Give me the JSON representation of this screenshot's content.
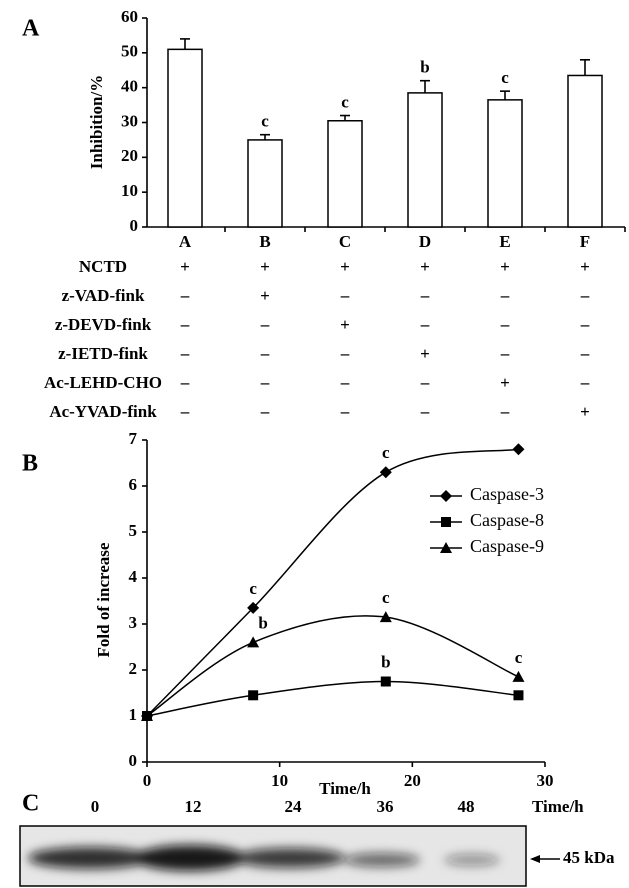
{
  "chart_data": [
    {
      "type": "bar",
      "panel": "A",
      "y_label": "Inhibition/%",
      "categories": [
        "A",
        "B",
        "C",
        "D",
        "E",
        "F"
      ],
      "values": [
        51,
        25,
        30.5,
        38.5,
        36.5,
        43.5
      ],
      "errors": [
        3,
        1.5,
        1.5,
        3.5,
        2.5,
        4.5
      ],
      "annotations": [
        null,
        "c",
        "c",
        "b",
        "c",
        null
      ],
      "color": "#ffffff",
      "ylim": [
        0,
        60
      ],
      "yticks": [
        0,
        10,
        20,
        30,
        40,
        50,
        60
      ],
      "treatments": [
        {
          "name": "NCTD",
          "signs": [
            "+",
            "+",
            "+",
            "+",
            "+",
            "+"
          ]
        },
        {
          "name": "z-VAD-fink",
          "signs": [
            "–",
            "+",
            "–",
            "–",
            "–",
            "–"
          ]
        },
        {
          "name": "z-DEVD-fink",
          "signs": [
            "–",
            "–",
            "+",
            "–",
            "–",
            "–"
          ]
        },
        {
          "name": "z-IETD-fink",
          "signs": [
            "–",
            "–",
            "–",
            "+",
            "–",
            "–"
          ]
        },
        {
          "name": "Ac-LEHD-CHO",
          "signs": [
            "–",
            "–",
            "–",
            "–",
            "+",
            "–"
          ]
        },
        {
          "name": "Ac-YVAD-fink",
          "signs": [
            "–",
            "–",
            "–",
            "–",
            "–",
            "+"
          ]
        }
      ]
    },
    {
      "type": "line",
      "panel": "B",
      "x_label": "Time/h",
      "y_label": "Fold of increase",
      "x": [
        0,
        8,
        18,
        28
      ],
      "series": [
        {
          "name": "Caspase-3",
          "color": "#000000",
          "marker": "diamond",
          "values": [
            1,
            3.35,
            6.3,
            6.8
          ],
          "annotations": [
            null,
            "c",
            "c",
            null
          ]
        },
        {
          "name": "Caspase-8",
          "color": "#000000",
          "marker": "square",
          "values": [
            1,
            1.45,
            1.75,
            1.45
          ],
          "annotations": [
            null,
            null,
            "b",
            null
          ]
        },
        {
          "name": "Caspase-9",
          "color": "#000000",
          "marker": "triangle",
          "values": [
            1,
            2.6,
            3.15,
            1.85
          ],
          "annotations": [
            null,
            "b",
            "c",
            "c"
          ]
        }
      ],
      "xlim": [
        0,
        30
      ],
      "xticks": [
        0,
        10,
        20,
        30
      ],
      "ylim": [
        0,
        7
      ],
      "yticks": [
        0,
        1,
        2,
        3,
        4,
        5,
        6,
        7
      ]
    }
  ],
  "blot": {
    "panel": "C",
    "lanes": [
      "0",
      "12",
      "24",
      "36",
      "48"
    ],
    "time_label": "Time/h",
    "marker": "45 kDa"
  }
}
